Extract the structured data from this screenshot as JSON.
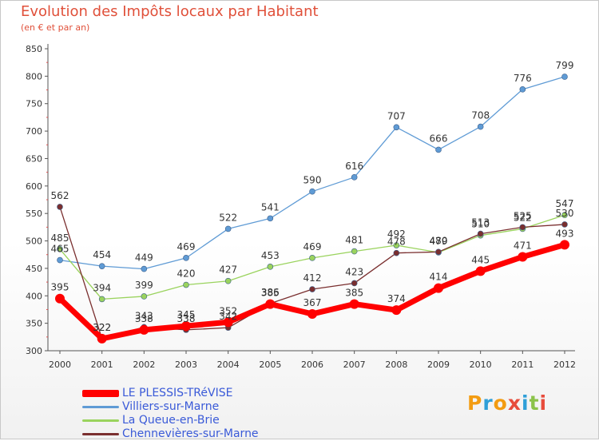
{
  "title": "Evolution des Impôts locaux par Habitant",
  "subtitle": "(en € et par an)",
  "logo": {
    "text": "Proxiti",
    "letters": [
      "P",
      "r",
      "o",
      "x",
      "i",
      "t",
      "i"
    ],
    "letter_colors": [
      "#f39c12",
      "#2f9fd8",
      "#f39c12",
      "#e74c3c",
      "#2f9fd8",
      "#8bc34a",
      "#e74c3c"
    ]
  },
  "chart_data": {
    "type": "line",
    "title": "Evolution des Impôts locaux par Habitant",
    "ylabel": "(en € et par an)",
    "xlabel": "",
    "x": [
      "2000",
      "2001",
      "2002",
      "2003",
      "2004",
      "2005",
      "2006",
      "2007",
      "2008",
      "2009",
      "2010",
      "2011",
      "2012"
    ],
    "ylim": [
      300,
      850
    ],
    "yticks": [
      "300",
      "350",
      "400",
      "450",
      "500",
      "550",
      "600",
      "650",
      "700",
      "750",
      "800",
      "850"
    ],
    "grid": false,
    "legend_position": "bottom-left",
    "series": [
      {
        "name": "LE PLESSIS-TRéVISE",
        "values": [
          395,
          322,
          338,
          345,
          352,
          385,
          367,
          385,
          374,
          414,
          445,
          471,
          493
        ],
        "color": "#ff0000",
        "line_kind": "thick"
      },
      {
        "name": "Villiers-sur-Marne",
        "values": [
          465,
          454,
          449,
          469,
          522,
          541,
          590,
          616,
          707,
          666,
          708,
          776,
          799
        ],
        "color": "#5f9bd5",
        "line_kind": "thin"
      },
      {
        "name": "La Queue-en-Brie",
        "values": [
          485,
          394,
          399,
          420,
          427,
          453,
          469,
          481,
          492,
          479,
          510,
          522,
          547
        ],
        "color": "#9ad35d",
        "line_kind": "thin"
      },
      {
        "name": "Chennevières-sur-Marne",
        "values": [
          562,
          322,
          343,
          338,
          342,
          386,
          412,
          423,
          478,
          480,
          513,
          525,
          530
        ],
        "color": "#7a2f2f",
        "line_kind": "thin"
      }
    ]
  }
}
